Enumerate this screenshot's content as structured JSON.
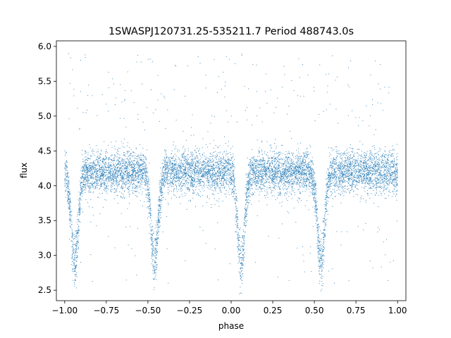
{
  "chart_data": {
    "type": "scatter",
    "title": "1SWASPJ120731.25-535211.7 Period 488743.0s",
    "xlabel": "phase",
    "ylabel": "flux",
    "xlim": [
      -1.05,
      1.05
    ],
    "ylim": [
      2.35,
      6.08
    ],
    "x_ticks": [
      -1.0,
      -0.75,
      -0.5,
      -0.25,
      0.0,
      0.25,
      0.5,
      0.75,
      1.0
    ],
    "x_tick_labels": [
      "−1.00",
      "−0.75",
      "−0.50",
      "−0.25",
      "0.00",
      "0.25",
      "0.50",
      "0.75",
      "1.00"
    ],
    "y_ticks": [
      2.5,
      3.0,
      3.5,
      4.0,
      4.5,
      5.0,
      5.5,
      6.0
    ],
    "y_tick_labels": [
      "2.5",
      "3.0",
      "3.5",
      "4.0",
      "4.5",
      "5.0",
      "5.5",
      "6.0"
    ],
    "grid": false,
    "marker_color": "#1f77b4",
    "series": [
      {
        "x_range": [
          -1.0,
          1.0
        ],
        "baseline_flux": 4.2,
        "baseline_spread": 0.28,
        "primary_eclipse_phases": [
          -0.94,
          0.06
        ],
        "primary_eclipse_min_flux": 2.75,
        "secondary_eclipse_phases": [
          -0.46,
          0.54
        ],
        "secondary_eclipse_min_flux": 2.75,
        "eclipse_half_width": 0.03,
        "outlier_range": [
          4.8,
          5.9
        ],
        "sample_points": [
          [
            -1.0,
            4.2
          ],
          [
            -0.94,
            3.0
          ],
          [
            -0.9,
            2.55
          ],
          [
            -0.8,
            4.3
          ],
          [
            -0.7,
            4.25
          ],
          [
            -0.6,
            4.2
          ],
          [
            -0.46,
            2.75
          ],
          [
            -0.35,
            4.2
          ],
          [
            -0.25,
            4.15
          ],
          [
            -0.1,
            4.3
          ],
          [
            0.06,
            2.9
          ],
          [
            0.1,
            2.5
          ],
          [
            0.2,
            4.25
          ],
          [
            0.3,
            4.3
          ],
          [
            0.4,
            4.2
          ],
          [
            0.54,
            2.75
          ],
          [
            0.65,
            4.2
          ],
          [
            0.75,
            4.25
          ],
          [
            0.85,
            4.2
          ],
          [
            1.0,
            4.2
          ]
        ]
      }
    ]
  }
}
